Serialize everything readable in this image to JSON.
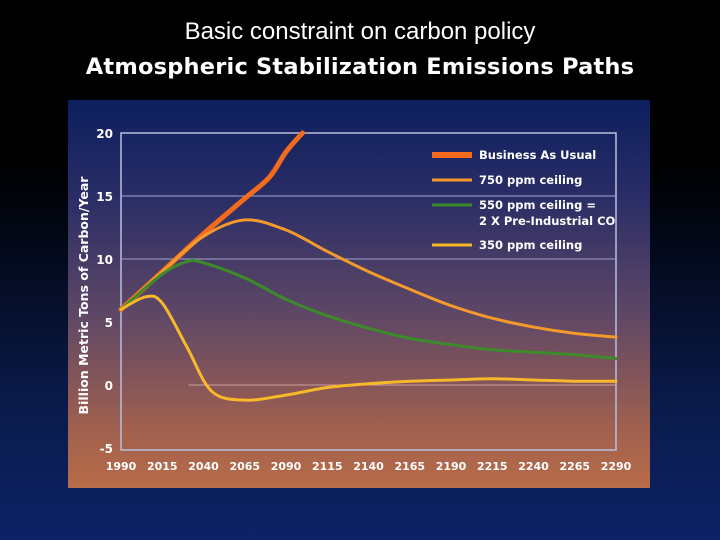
{
  "slide": {
    "title": "Basic constraint on carbon policy",
    "subtitle": "Atmospheric Stabilization Emissions Paths"
  },
  "chart_data": {
    "type": "line",
    "title": "Atmospheric Stabilization Emissions Paths",
    "xlabel": "",
    "ylabel": "Billion Metric Tons of Carbon/Year",
    "xlim": [
      1990,
      2290
    ],
    "ylim": [
      -5,
      20
    ],
    "xticks": [
      "1990",
      "2015",
      "2040",
      "2065",
      "2090",
      "2115",
      "2140",
      "2165",
      "2190",
      "2215",
      "2240",
      "2265",
      "2290"
    ],
    "yticks": [
      "20",
      "15",
      "10",
      "5",
      "0",
      "-5"
    ],
    "legend_position": "top-right",
    "series": [
      {
        "name": "Business As Usual",
        "color": "#f26a1b",
        "width": 5,
        "x": [
          1990,
          2015,
          2040,
          2065,
          2080,
          2090,
          2100
        ],
        "y": [
          6,
          9,
          12,
          14.8,
          16.5,
          18.5,
          20
        ]
      },
      {
        "name": "750 ppm ceiling",
        "color": "#f39a2c",
        "width": 3,
        "x": [
          1990,
          2015,
          2040,
          2065,
          2090,
          2115,
          2140,
          2165,
          2190,
          2215,
          2240,
          2265,
          2290
        ],
        "y": [
          6,
          9,
          11.8,
          13.1,
          12.3,
          10.6,
          9,
          7.6,
          6.3,
          5.3,
          4.6,
          4.1,
          3.8
        ]
      },
      {
        "name": "550 ppm ceiling =",
        "name_line2": "2 X Pre-Industrial CO",
        "color": "#3d8a2a",
        "width": 3,
        "x": [
          1990,
          2015,
          2030,
          2040,
          2065,
          2090,
          2115,
          2140,
          2165,
          2190,
          2215,
          2240,
          2265,
          2290
        ],
        "y": [
          6,
          8.8,
          9.8,
          9.7,
          8.5,
          6.8,
          5.5,
          4.5,
          3.7,
          3.2,
          2.8,
          2.6,
          2.4,
          2.1
        ]
      },
      {
        "name": "350 ppm ceiling",
        "color": "#f7b82a",
        "width": 3,
        "x": [
          1990,
          2005,
          2015,
          2030,
          2045,
          2065,
          2090,
          2115,
          2140,
          2165,
          2190,
          2215,
          2240,
          2265,
          2290
        ],
        "y": [
          6,
          7,
          6.5,
          3,
          -0.5,
          -1.2,
          -0.8,
          -0.2,
          0.1,
          0.3,
          0.4,
          0.5,
          0.4,
          0.3,
          0.3
        ]
      }
    ]
  }
}
